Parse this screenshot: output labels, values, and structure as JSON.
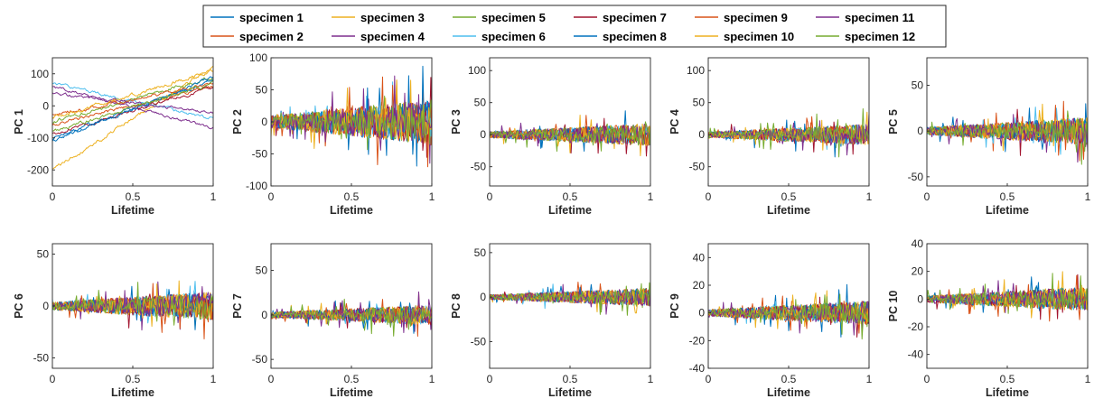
{
  "colors": [
    "#0072BD",
    "#D95319",
    "#EDB120",
    "#7E2F8E",
    "#77AC30",
    "#4DBEEE",
    "#A2142F"
  ],
  "legend": {
    "rows": [
      [
        "specimen 1",
        "specimen 3",
        "specimen 5",
        "specimen 7",
        "specimen 9",
        "specimen 11"
      ],
      [
        "specimen 2",
        "specimen 4",
        "specimen 6",
        "specimen 8",
        "specimen 10",
        "specimen 12"
      ]
    ]
  },
  "chart_data": [
    {
      "type": "line",
      "panel": 0,
      "ylabel": "PC 1",
      "xlabel": "Lifetime",
      "xlim": [
        0,
        1
      ],
      "ylim": [
        -250,
        150
      ],
      "xticks": [
        0,
        0.5,
        1
      ],
      "yticks": [
        100,
        0,
        -100,
        -200
      ],
      "series": [
        {
          "name": "specimen 1",
          "start": -100,
          "end": 80,
          "noise": 8
        },
        {
          "name": "specimen 2",
          "start": -60,
          "end": 60,
          "noise": 8
        },
        {
          "name": "specimen 3",
          "start": -200,
          "end": 120,
          "noise": 9
        },
        {
          "name": "specimen 4",
          "start": 60,
          "end": -70,
          "noise": 7
        },
        {
          "name": "specimen 5",
          "start": -50,
          "end": 90,
          "noise": 8
        },
        {
          "name": "specimen 6",
          "start": 70,
          "end": -40,
          "noise": 7
        },
        {
          "name": "specimen 7",
          "start": -90,
          "end": 60,
          "noise": 8
        },
        {
          "name": "specimen 8",
          "start": -110,
          "end": 90,
          "noise": 8
        },
        {
          "name": "specimen 9",
          "start": -30,
          "end": 70,
          "noise": 8
        },
        {
          "name": "specimen 10",
          "start": -40,
          "end": 110,
          "noise": 9
        },
        {
          "name": "specimen 11",
          "start": 40,
          "end": -20,
          "noise": 7
        },
        {
          "name": "specimen 12",
          "start": -80,
          "end": 70,
          "noise": 8
        }
      ]
    },
    {
      "type": "line",
      "panel": 1,
      "ylabel": "PC 2",
      "xlabel": "Lifetime",
      "xlim": [
        0,
        1
      ],
      "ylim": [
        -100,
        100
      ],
      "xticks": [
        0,
        0.5,
        1
      ],
      "yticks": [
        100,
        50,
        0,
        -50,
        -100
      ],
      "amp": 28
    },
    {
      "type": "line",
      "panel": 2,
      "ylabel": "PC 3",
      "xlabel": "Lifetime",
      "xlim": [
        0,
        1
      ],
      "ylim": [
        -80,
        120
      ],
      "xticks": [
        0,
        0.5,
        1
      ],
      "yticks": [
        100,
        50,
        0,
        -50
      ],
      "amp": 14
    },
    {
      "type": "line",
      "panel": 3,
      "ylabel": "PC 4",
      "xlabel": "Lifetime",
      "xlim": [
        0,
        1
      ],
      "ylim": [
        -80,
        120
      ],
      "xticks": [
        0,
        0.5,
        1
      ],
      "yticks": [
        100,
        50,
        0,
        -50
      ],
      "amp": 13
    },
    {
      "type": "line",
      "panel": 4,
      "ylabel": "PC 5",
      "xlabel": "Lifetime",
      "xlim": [
        0,
        1
      ],
      "ylim": [
        -60,
        80
      ],
      "xticks": [
        0,
        0.5,
        1
      ],
      "yticks": [
        50,
        0,
        -50
      ],
      "amp": 12
    },
    {
      "type": "line",
      "panel": 5,
      "ylabel": "PC 6",
      "xlabel": "Lifetime",
      "xlim": [
        0,
        1
      ],
      "ylim": [
        -60,
        60
      ],
      "xticks": [
        0,
        0.5,
        1
      ],
      "yticks": [
        50,
        0,
        -50
      ],
      "amp": 11
    },
    {
      "type": "line",
      "panel": 6,
      "ylabel": "PC 7",
      "xlabel": "Lifetime",
      "xlim": [
        0,
        1
      ],
      "ylim": [
        -60,
        80
      ],
      "xticks": [
        0,
        0.5,
        1
      ],
      "yticks": [
        50,
        0,
        -50
      ],
      "amp": 9
    },
    {
      "type": "line",
      "panel": 7,
      "ylabel": "PC 8",
      "xlabel": "Lifetime",
      "xlim": [
        0,
        1
      ],
      "ylim": [
        -80,
        60
      ],
      "xticks": [
        0,
        0.5,
        1
      ],
      "yticks": [
        50,
        0,
        -50
      ],
      "amp": 8
    },
    {
      "type": "line",
      "panel": 8,
      "ylabel": "PC 9",
      "xlabel": "Lifetime",
      "xlim": [
        0,
        1
      ],
      "ylim": [
        -40,
        50
      ],
      "xticks": [
        0,
        0.5,
        1
      ],
      "yticks": [
        40,
        20,
        0,
        -20,
        -40
      ],
      "amp": 7
    },
    {
      "type": "line",
      "panel": 9,
      "ylabel": "PC 10",
      "xlabel": "Lifetime",
      "xlim": [
        0,
        1
      ],
      "ylim": [
        -50,
        40
      ],
      "xticks": [
        0,
        0.5,
        1
      ],
      "yticks": [
        40,
        20,
        0,
        -20,
        -40
      ],
      "amp": 7
    }
  ]
}
